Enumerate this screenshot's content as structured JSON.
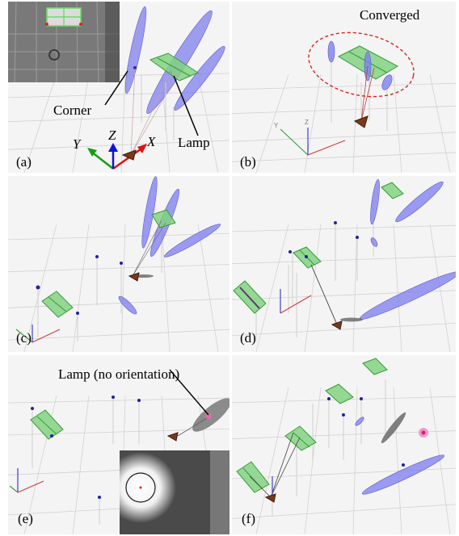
{
  "panels": {
    "a": {
      "label": "(a)"
    },
    "b": {
      "label": "(b)"
    },
    "c": {
      "label": "(c)"
    },
    "d": {
      "label": "(d)"
    },
    "e": {
      "label": "(e)"
    },
    "f": {
      "label": "(f)"
    }
  },
  "annotations": {
    "corner": "Corner",
    "lamp": "Lamp",
    "converged": "Converged",
    "lamp_no_orientation": "Lamp (no orientation)"
  },
  "axes": {
    "x": "X",
    "y": "Y",
    "z": "Z"
  },
  "colors": {
    "ellipse": "#7a7af0",
    "lamp_landmark": "#7ed07e",
    "x_axis": "#e01010",
    "y_axis": "#10a010",
    "z_axis": "#1010e0",
    "converged_circle": "#e02020",
    "camera": "#8a3a1a",
    "grid": "#cfcfcf"
  }
}
